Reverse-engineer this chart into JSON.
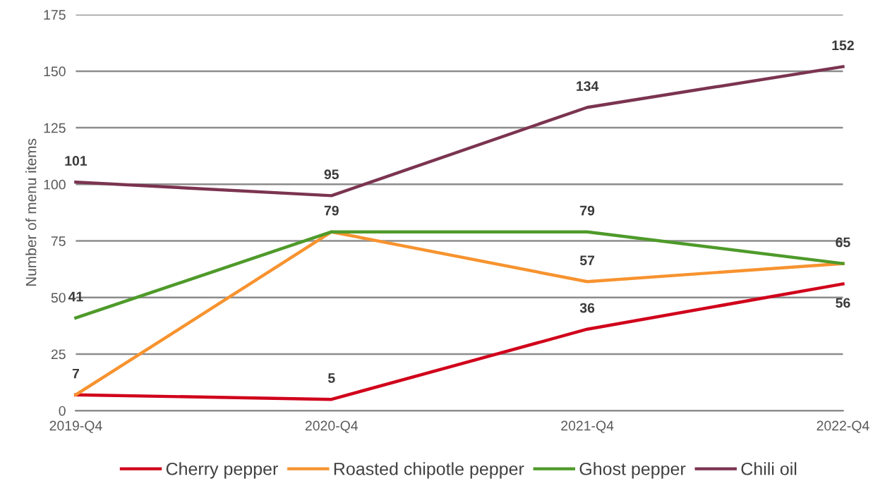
{
  "chart_data": {
    "type": "line",
    "ylabel": "Number of menu items",
    "categories": [
      "2019-Q4",
      "2020-Q4",
      "2021-Q4",
      "2022-Q4"
    ],
    "series": [
      {
        "name": "Cherry pepper",
        "color": "#d0021b",
        "values": [
          7,
          5,
          36,
          56
        ],
        "value_labels": [
          "7",
          "5",
          "36",
          "56"
        ]
      },
      {
        "name": "Roasted chipotle pepper",
        "color": "#f7932f",
        "values": [
          7,
          79,
          57,
          65
        ],
        "value_labels": [
          null,
          null,
          "57",
          "65"
        ]
      },
      {
        "name": "Ghost pepper",
        "color": "#4e9a2a",
        "values": [
          41,
          79,
          79,
          65
        ],
        "value_labels": [
          "41",
          "79",
          "79",
          null
        ]
      },
      {
        "name": "Chili oil",
        "color": "#7b3450",
        "values": [
          101,
          95,
          134,
          152
        ],
        "value_labels": [
          "101",
          "95",
          "134",
          "152"
        ]
      }
    ],
    "ylim": [
      0,
      175
    ],
    "yticks": [
      0,
      25,
      50,
      75,
      100,
      125,
      150,
      175
    ],
    "grid": "y",
    "legend": "bottom",
    "marker": "none",
    "line_style": "solid"
  }
}
